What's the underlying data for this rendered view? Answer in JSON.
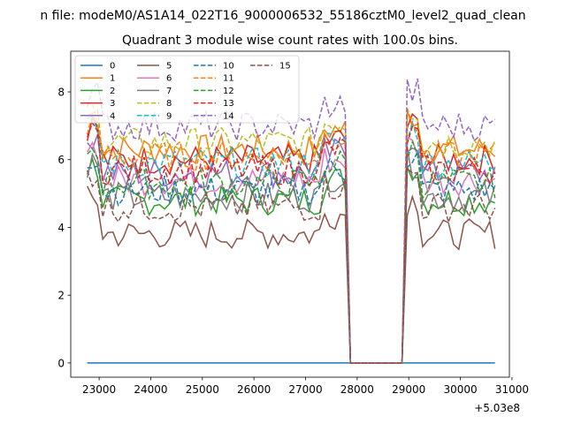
{
  "chart_data": {
    "type": "line",
    "suptitle": "n file: modeM0/AS1A14_022T16_9000006532_55186cztM0_level2_quad_clean",
    "title": "Quadrant 3 module wise count rates with 100.0s bins.",
    "xlabel": "",
    "ylabel": "",
    "x_offset_label": "+5.03e8",
    "xlim": [
      22450,
      30950
    ],
    "ylim": [
      -0.42,
      9.2
    ],
    "xticks": [
      23000,
      24000,
      25000,
      26000,
      27000,
      28000,
      29000,
      30000,
      31000
    ],
    "yticks": [
      0,
      2,
      4,
      6,
      8
    ],
    "legend": "upper-left",
    "grid": false,
    "segments": [
      {
        "x_start": 22770,
        "x_end": 27770
      },
      {
        "x_start": 28970,
        "x_end": 30670
      }
    ],
    "gap": {
      "x": [
        27870,
        28870
      ],
      "y": 0
    },
    "series": [
      {
        "name": "0",
        "color": "#1f77b4",
        "dash": false,
        "level": 0.0
      },
      {
        "name": "1",
        "color": "#ff7f0e",
        "dash": false,
        "level": 6.3
      },
      {
        "name": "2",
        "color": "#2ca02c",
        "dash": false,
        "level": 4.8
      },
      {
        "name": "3",
        "color": "#d62728",
        "dash": false,
        "level": 6.0
      },
      {
        "name": "4",
        "color": "#9467bd",
        "dash": false,
        "level": 5.6
      },
      {
        "name": "5",
        "color": "#8c564b",
        "dash": false,
        "level": 3.8
      },
      {
        "name": "6",
        "color": "#e377c2",
        "dash": false,
        "level": 5.4
      },
      {
        "name": "7",
        "color": "#7f7f7f",
        "dash": false,
        "level": 4.9
      },
      {
        "name": "8",
        "color": "#bcbd22",
        "dash": true,
        "level": 6.5
      },
      {
        "name": "9",
        "color": "#17becf",
        "dash": true,
        "level": 5.9
      },
      {
        "name": "10",
        "color": "#1f77b4",
        "dash": true,
        "level": 5.1
      },
      {
        "name": "11",
        "color": "#ff7f0e",
        "dash": true,
        "level": 6.1
      },
      {
        "name": "12",
        "color": "#2ca02c",
        "dash": true,
        "level": 5.3
      },
      {
        "name": "13",
        "color": "#d62728",
        "dash": true,
        "level": 5.7
      },
      {
        "name": "14",
        "color": "#9467bd",
        "dash": true,
        "level": 7.0
      },
      {
        "name": "15",
        "color": "#8c564b",
        "dash": true,
        "level": 4.6
      }
    ]
  }
}
